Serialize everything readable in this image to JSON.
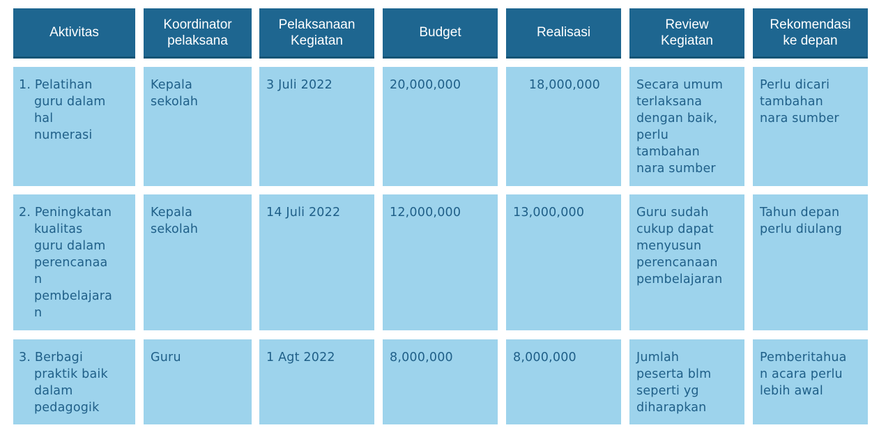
{
  "headers": [
    "Aktivitas",
    "Koordinator\npelaksana",
    "Pelaksanaan\nKegiatan",
    "Budget",
    "Realisasi",
    "Review\nKegiatan",
    "Rekomendasi\nke depan"
  ],
  "rows": [
    {
      "aktivitas": "1. Pelatihan\nguru dalam\nhal\nnumerasi",
      "koordinator": "Kepala\nsekolah",
      "pelaksanaan": "3 Juli  2022",
      "budget": "20,000,000",
      "realisasi": "18,000,000",
      "review": "Secara umum\nterlaksana\ndengan baik,\nperlu\ntambahan\nnara sumber",
      "rekomendasi": "Perlu dicari\ntambahan\nnara sumber"
    },
    {
      "aktivitas": "2. Peningkatan\nkualitas\nguru dalam\nperencanaa\nn\npembelajara\nn",
      "koordinator": "Kepala\nsekolah",
      "pelaksanaan": "14 Juli  2022",
      "budget": "12,000,000",
      "realisasi": "13,000,000",
      "review": "Guru sudah\ncukup dapat\nmenyusun\nperencanaan\npembelajaran",
      "rekomendasi": "Tahun depan\nperlu diulang"
    },
    {
      "aktivitas": "3. Berbagi\npraktik baik\ndalam\npedagogik",
      "koordinator": "Guru",
      "pelaksanaan": "1 Agt 2022",
      "budget": "8,000,000",
      "realisasi": "8,000,000",
      "review": "Jumlah\npeserta blm\nseperti yg\ndiharapkan",
      "rekomendasi": "Pemberitahua\nn acara perlu\nlebih awal"
    }
  ],
  "colors": {
    "header_bg": "#1e6690",
    "cell_bg": "#9dd3ec",
    "cell_text": "#1f5f88"
  }
}
